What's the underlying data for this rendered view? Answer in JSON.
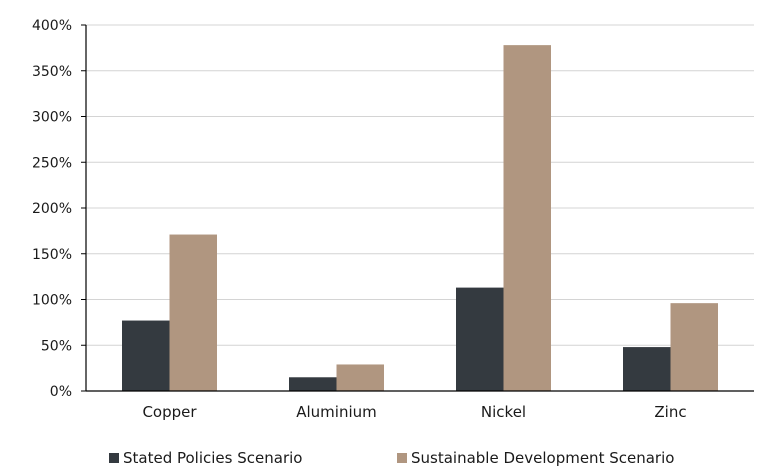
{
  "chart_data": {
    "type": "bar",
    "title": "",
    "xlabel": "",
    "ylabel": "",
    "categories": [
      "Copper",
      "Aluminium",
      "Nickel",
      "Zinc"
    ],
    "series": [
      {
        "name": "Stated Policies Scenario",
        "color": "#343a40",
        "values": [
          77,
          15,
          113,
          48
        ]
      },
      {
        "name": "Sustainable Development Scenario",
        "color": "#b09680",
        "values": [
          171,
          29,
          378,
          96
        ]
      }
    ],
    "ylim": [
      0,
      400
    ],
    "yticks": [
      "0%",
      "50%",
      "100%",
      "150%",
      "200%",
      "250%",
      "300%",
      "350%",
      "400%"
    ],
    "grid": true,
    "legend_position": "bottom"
  }
}
